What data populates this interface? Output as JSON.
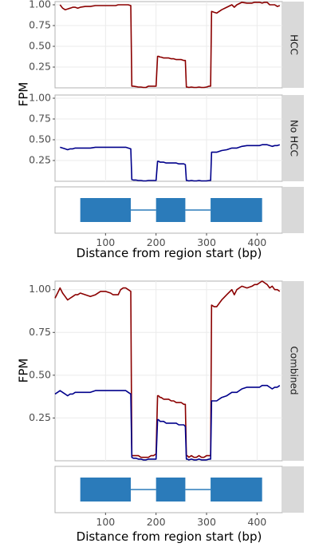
{
  "colors": {
    "hcc": "#8b0000",
    "no_hcc": "#00008b",
    "exon": "#2b7bba",
    "strip": "#d9d9d9",
    "grid": "#ebebeb"
  },
  "chart_data": [
    {
      "type": "line",
      "facet": "HCC",
      "ylabel": "FPM",
      "xlim": [
        0,
        450
      ],
      "ylim": [
        0,
        1.0
      ],
      "yticks": [
        0.25,
        0.5,
        0.75,
        1.0
      ],
      "series": [
        {
          "color": "#8b0000",
          "x": [
            10,
            15,
            20,
            25,
            30,
            35,
            40,
            45,
            50,
            60,
            70,
            80,
            90,
            100,
            110,
            115,
            120,
            125,
            130,
            135,
            140,
            145,
            150,
            152,
            155,
            160,
            165,
            170,
            175,
            180,
            185,
            190,
            195,
            200,
            203,
            205,
            208,
            210,
            215,
            220,
            225,
            230,
            235,
            240,
            245,
            250,
            255,
            258,
            260,
            262,
            265,
            270,
            275,
            280,
            285,
            290,
            295,
            300,
            305,
            308,
            310,
            315,
            320,
            330,
            340,
            350,
            355,
            360,
            370,
            380,
            390,
            395,
            400,
            405,
            410,
            415,
            420,
            425,
            430,
            435,
            440,
            445
          ],
          "y": [
            1.0,
            0.96,
            0.94,
            0.95,
            0.96,
            0.97,
            0.97,
            0.96,
            0.97,
            0.98,
            0.98,
            0.99,
            0.99,
            0.99,
            0.99,
            0.99,
            0.99,
            1.0,
            1.0,
            1.0,
            1.0,
            1.0,
            0.99,
            0.02,
            0.02,
            0.015,
            0.01,
            0.01,
            0.005,
            0.005,
            0.02,
            0.02,
            0.02,
            0.02,
            0.38,
            0.38,
            0.37,
            0.37,
            0.36,
            0.36,
            0.36,
            0.35,
            0.35,
            0.34,
            0.34,
            0.34,
            0.33,
            0.33,
            0.01,
            0.01,
            0.005,
            0.01,
            0.005,
            0.005,
            0.01,
            0.005,
            0.005,
            0.01,
            0.02,
            0.02,
            0.92,
            0.91,
            0.9,
            0.94,
            0.97,
            1.0,
            0.97,
            1.0,
            1.03,
            1.02,
            1.02,
            1.03,
            1.03,
            1.03,
            1.02,
            1.03,
            1.03,
            1.0,
            1.0,
            1.0,
            0.98,
            0.99
          ]
        }
      ]
    },
    {
      "type": "line",
      "facet": "No HCC",
      "ylabel": "FPM",
      "xlim": [
        0,
        450
      ],
      "ylim": [
        0,
        1.0
      ],
      "yticks": [
        0.25,
        0.5,
        0.75,
        1.0
      ],
      "series": [
        {
          "color": "#00008b",
          "x": [
            10,
            15,
            20,
            25,
            30,
            35,
            40,
            45,
            50,
            60,
            70,
            80,
            90,
            100,
            110,
            115,
            120,
            125,
            130,
            135,
            140,
            145,
            150,
            152,
            155,
            160,
            165,
            170,
            175,
            180,
            185,
            190,
            195,
            200,
            203,
            205,
            208,
            210,
            215,
            220,
            225,
            230,
            235,
            240,
            245,
            250,
            255,
            258,
            260,
            262,
            265,
            270,
            275,
            280,
            285,
            290,
            295,
            300,
            305,
            308,
            310,
            315,
            320,
            330,
            340,
            350,
            355,
            360,
            370,
            380,
            390,
            395,
            400,
            405,
            410,
            415,
            420,
            425,
            430,
            435,
            440,
            445
          ],
          "y": [
            0.41,
            0.4,
            0.39,
            0.38,
            0.39,
            0.39,
            0.4,
            0.4,
            0.4,
            0.4,
            0.4,
            0.41,
            0.41,
            0.41,
            0.41,
            0.41,
            0.41,
            0.41,
            0.41,
            0.41,
            0.41,
            0.4,
            0.39,
            0.02,
            0.015,
            0.015,
            0.01,
            0.01,
            0.005,
            0.005,
            0.01,
            0.01,
            0.01,
            0.01,
            0.24,
            0.24,
            0.23,
            0.23,
            0.23,
            0.22,
            0.22,
            0.22,
            0.22,
            0.22,
            0.21,
            0.21,
            0.21,
            0.2,
            0.01,
            0.01,
            0.005,
            0.01,
            0.005,
            0.005,
            0.01,
            0.005,
            0.005,
            0.005,
            0.01,
            0.01,
            0.35,
            0.35,
            0.35,
            0.37,
            0.38,
            0.4,
            0.4,
            0.4,
            0.42,
            0.43,
            0.43,
            0.43,
            0.43,
            0.43,
            0.44,
            0.44,
            0.44,
            0.43,
            0.42,
            0.43,
            0.43,
            0.44
          ]
        }
      ]
    },
    {
      "type": "line",
      "facet": "Combined",
      "ylabel": "FPM",
      "xlim": [
        0,
        450
      ],
      "ylim": [
        0,
        1.05
      ],
      "yticks": [
        0.25,
        0.5,
        0.75,
        1.0
      ],
      "series": [
        {
          "color": "#8b0000",
          "x": [
            0,
            5,
            10,
            15,
            20,
            25,
            30,
            35,
            40,
            45,
            50,
            60,
            70,
            80,
            90,
            100,
            110,
            115,
            120,
            125,
            130,
            135,
            140,
            145,
            150,
            152,
            155,
            160,
            165,
            170,
            175,
            180,
            185,
            190,
            195,
            200,
            203,
            205,
            208,
            210,
            215,
            220,
            225,
            230,
            235,
            240,
            245,
            250,
            255,
            258,
            260,
            262,
            265,
            270,
            275,
            280,
            285,
            290,
            295,
            300,
            305,
            308,
            310,
            315,
            320,
            330,
            340,
            350,
            355,
            360,
            370,
            380,
            390,
            395,
            400,
            405,
            410,
            415,
            420,
            425,
            430,
            435,
            440,
            445
          ],
          "y": [
            0.95,
            0.98,
            1.01,
            0.98,
            0.96,
            0.94,
            0.95,
            0.96,
            0.97,
            0.97,
            0.98,
            0.97,
            0.96,
            0.97,
            0.99,
            0.99,
            0.98,
            0.97,
            0.97,
            0.97,
            1.0,
            1.01,
            1.01,
            1.0,
            0.99,
            0.03,
            0.03,
            0.03,
            0.03,
            0.02,
            0.02,
            0.02,
            0.02,
            0.03,
            0.03,
            0.04,
            0.38,
            0.38,
            0.37,
            0.37,
            0.36,
            0.36,
            0.36,
            0.35,
            0.35,
            0.34,
            0.34,
            0.34,
            0.33,
            0.33,
            0.03,
            0.03,
            0.02,
            0.03,
            0.02,
            0.02,
            0.03,
            0.02,
            0.02,
            0.03,
            0.03,
            0.03,
            0.91,
            0.9,
            0.9,
            0.94,
            0.97,
            1.0,
            0.97,
            1.0,
            1.02,
            1.01,
            1.02,
            1.03,
            1.03,
            1.04,
            1.05,
            1.04,
            1.03,
            1.01,
            1.02,
            1.0,
            1.0,
            0.99
          ]
        },
        {
          "color": "#00008b",
          "x": [
            0,
            5,
            10,
            15,
            20,
            25,
            30,
            35,
            40,
            45,
            50,
            60,
            70,
            80,
            90,
            100,
            110,
            115,
            120,
            125,
            130,
            135,
            140,
            145,
            150,
            152,
            155,
            160,
            165,
            170,
            175,
            180,
            185,
            190,
            195,
            200,
            203,
            205,
            208,
            210,
            215,
            220,
            225,
            230,
            235,
            240,
            245,
            250,
            255,
            258,
            260,
            262,
            265,
            270,
            275,
            280,
            285,
            290,
            295,
            300,
            305,
            308,
            310,
            315,
            320,
            330,
            340,
            350,
            355,
            360,
            370,
            380,
            390,
            395,
            400,
            405,
            410,
            415,
            420,
            425,
            430,
            435,
            440,
            445
          ],
          "y": [
            0.39,
            0.4,
            0.41,
            0.4,
            0.39,
            0.38,
            0.39,
            0.39,
            0.4,
            0.4,
            0.4,
            0.4,
            0.4,
            0.41,
            0.41,
            0.41,
            0.41,
            0.41,
            0.41,
            0.41,
            0.41,
            0.41,
            0.41,
            0.4,
            0.39,
            0.02,
            0.015,
            0.015,
            0.01,
            0.01,
            0.005,
            0.005,
            0.01,
            0.01,
            0.01,
            0.01,
            0.24,
            0.24,
            0.23,
            0.23,
            0.23,
            0.22,
            0.22,
            0.22,
            0.22,
            0.22,
            0.21,
            0.21,
            0.21,
            0.2,
            0.01,
            0.01,
            0.005,
            0.01,
            0.005,
            0.005,
            0.01,
            0.005,
            0.005,
            0.005,
            0.01,
            0.01,
            0.35,
            0.35,
            0.35,
            0.37,
            0.38,
            0.4,
            0.4,
            0.4,
            0.42,
            0.43,
            0.43,
            0.43,
            0.43,
            0.43,
            0.44,
            0.44,
            0.44,
            0.43,
            0.42,
            0.43,
            0.43,
            0.44
          ]
        }
      ]
    },
    {
      "type": "gene-model",
      "xlabel": "Distance from region start (bp)",
      "xlim": [
        0,
        450
      ],
      "xticks": [
        100,
        200,
        300,
        400
      ],
      "exons": [
        [
          50,
          150
        ],
        [
          200,
          258
        ],
        [
          308,
          410
        ]
      ],
      "introns": [
        [
          150,
          200
        ],
        [
          258,
          308
        ]
      ]
    }
  ]
}
